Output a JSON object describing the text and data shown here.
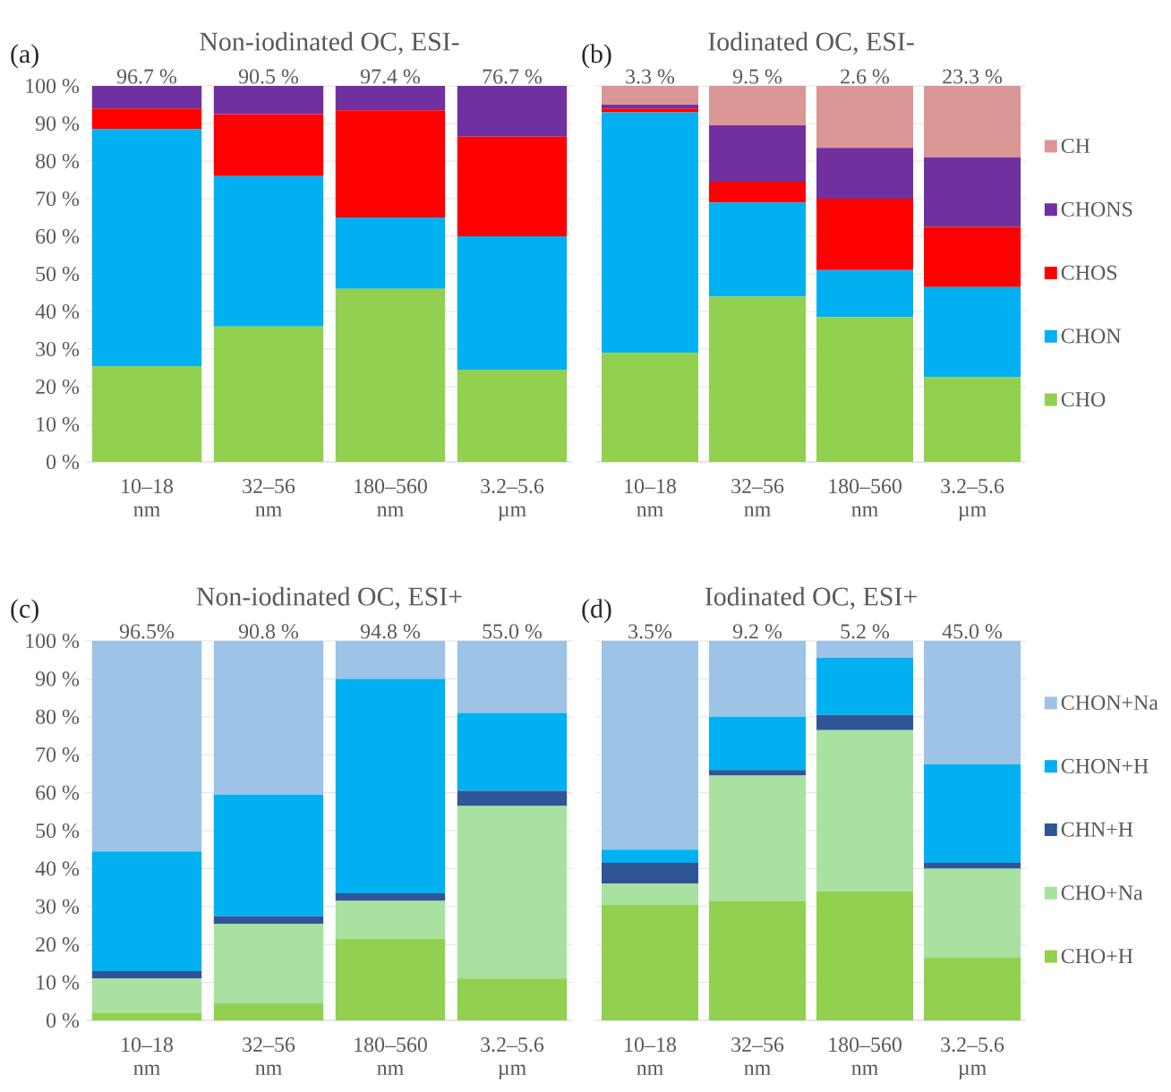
{
  "chart_data": [
    {
      "type": "bar",
      "stacked": true,
      "title": "Non-iodinated OC, ESI-",
      "categories": [
        "10–18 nm",
        "32–56 nm",
        "180–560 nm",
        "3.2–5.6 µm"
      ],
      "series": [
        {
          "color": "#92d050",
          "values": [
            25.5,
            36,
            46,
            24.5
          ]
        },
        {
          "color": "#00b0f0",
          "values": [
            63,
            40,
            19,
            35.5
          ]
        },
        {
          "color": "#ff0000",
          "values": [
            5.5,
            16.5,
            28.5,
            26.5
          ]
        },
        {
          "color": "#7030a0",
          "values": [
            6,
            7.5,
            6.5,
            13.5
          ]
        }
      ],
      "ylim": [
        0,
        100
      ],
      "yticks": [
        {
          "value": 0,
          "label": "0 %"
        },
        {
          "value": 10,
          "label": "10 %"
        },
        {
          "value": 20,
          "label": "20 %"
        },
        {
          "value": 30,
          "label": "30 %"
        },
        {
          "value": 40,
          "label": "40 %"
        },
        {
          "value": 50,
          "label": "50 %"
        },
        {
          "value": 60,
          "label": "60 %"
        },
        {
          "value": 70,
          "label": "70 %"
        },
        {
          "value": 80,
          "label": "80 %"
        },
        {
          "value": 90,
          "label": "90 %"
        },
        {
          "value": 100,
          "label": "100 %"
        }
      ],
      "grid": "y",
      "annotations": [
        "(a)",
        {
          "text": "96.7 %",
          "x": "10–18 nm",
          "y": 100
        },
        {
          "text": "90.5 %",
          "x": "32–56 nm",
          "y": 100
        },
        {
          "text": "97.4 %",
          "x": "180–560 nm",
          "y": 100
        },
        {
          "text": "76.7 %",
          "x": "3.2–5.6 µm",
          "y": 100
        }
      ]
    },
    {
      "type": "bar",
      "stacked": true,
      "title": "Iodinated OC, ESI-",
      "categories": [
        "10–18 nm",
        "32–56 nm",
        "180–560 nm",
        "3.2–5.6 µm"
      ],
      "series": [
        {
          "name": "CHO",
          "color": "#92d050",
          "values": [
            29,
            44,
            38.5,
            22.5
          ]
        },
        {
          "name": "CHON",
          "color": "#00b0f0",
          "values": [
            64,
            25,
            12.5,
            24
          ]
        },
        {
          "name": "CHOS",
          "color": "#ff0000",
          "values": [
            1,
            5.5,
            19,
            16
          ]
        },
        {
          "name": "CHONS",
          "color": "#7030a0",
          "values": [
            1,
            15,
            13.5,
            18.5
          ]
        },
        {
          "name": "CH",
          "color": "#da9694",
          "values": [
            5,
            10.5,
            16.5,
            19
          ]
        }
      ],
      "ylim": [
        0,
        100
      ],
      "yticks": [
        {
          "value": 0,
          "label": null
        },
        {
          "value": 10,
          "label": null
        },
        {
          "value": 20,
          "label": null
        },
        {
          "value": 30,
          "label": null
        },
        {
          "value": 40,
          "label": null
        },
        {
          "value": 50,
          "label": null
        },
        {
          "value": 60,
          "label": null
        },
        {
          "value": 70,
          "label": null
        },
        {
          "value": 80,
          "label": null
        },
        {
          "value": 90,
          "label": null
        },
        {
          "value": 100,
          "label": null
        }
      ],
      "tick_labels": "x",
      "grid": "y",
      "legend": "right",
      "annotations": [
        "(b)",
        {
          "text": "3.3 %",
          "x": "10–18 nm",
          "y": 100
        },
        {
          "text": "9.5 %",
          "x": "32–56 nm",
          "y": 100
        },
        {
          "text": "2.6 %",
          "x": "180–560 nm",
          "y": 100
        },
        {
          "text": "23.3 %",
          "x": "3.2–5.6 µm",
          "y": 100
        }
      ]
    },
    {
      "type": "bar",
      "stacked": true,
      "title": "Non-iodinated OC, ESI+",
      "categories": [
        "10–18 nm",
        "32–56 nm",
        "180–560 nm",
        "3.2–5.6 µm"
      ],
      "series": [
        {
          "color": "#92d050",
          "values": [
            2,
            4.5,
            21.5,
            11
          ]
        },
        {
          "color": "#a9e1a0",
          "values": [
            9,
            21,
            10,
            45.5
          ]
        },
        {
          "color": "#2f5597",
          "values": [
            2,
            2,
            2,
            4
          ]
        },
        {
          "color": "#00b0f0",
          "values": [
            31.5,
            32,
            56.5,
            20.5
          ]
        },
        {
          "color": "#9dc3e6",
          "values": [
            55.5,
            40.5,
            10,
            19
          ]
        }
      ],
      "ylim": [
        0,
        100
      ],
      "yticks": [
        {
          "value": 0,
          "label": "0 %"
        },
        {
          "value": 10,
          "label": "10 %"
        },
        {
          "value": 20,
          "label": "20 %"
        },
        {
          "value": 30,
          "label": "30 %"
        },
        {
          "value": 40,
          "label": "40 %"
        },
        {
          "value": 50,
          "label": "50 %"
        },
        {
          "value": 60,
          "label": "60 %"
        },
        {
          "value": 70,
          "label": "70 %"
        },
        {
          "value": 80,
          "label": "80 %"
        },
        {
          "value": 90,
          "label": "90 %"
        },
        {
          "value": 100,
          "label": "100 %"
        }
      ],
      "grid": "y",
      "annotations": [
        "(c)",
        {
          "text": "96.5%",
          "x": "10–18 nm",
          "y": 100
        },
        {
          "text": "90.8 %",
          "x": "32–56 nm",
          "y": 100
        },
        {
          "text": "94.8 %",
          "x": "180–560 nm",
          "y": 100
        },
        {
          "text": "55.0 %",
          "x": "3.2–5.6 µm",
          "y": 100
        }
      ]
    },
    {
      "type": "bar",
      "stacked": true,
      "title": "Iodinated OC, ESI+",
      "categories": [
        "10–18 nm",
        "32–56 nm",
        "180–560 nm",
        "3.2–5.6 µm"
      ],
      "series": [
        {
          "name": "CHO+H",
          "color": "#92d050",
          "values": [
            30.5,
            31.5,
            34,
            16.5
          ]
        },
        {
          "name": "CHO+Na",
          "color": "#a9e1a0",
          "values": [
            5.5,
            33,
            42.5,
            23.5
          ]
        },
        {
          "name": "CHN+H",
          "color": "#2f5597",
          "values": [
            5.5,
            1.5,
            4,
            1.5
          ]
        },
        {
          "name": "CHON+H",
          "color": "#00b0f0",
          "values": [
            3.5,
            14,
            15,
            26
          ]
        },
        {
          "name": "CHON+Na",
          "color": "#9dc3e6",
          "values": [
            55,
            20,
            4.5,
            32.5
          ]
        }
      ],
      "ylim": [
        0,
        100
      ],
      "yticks": [
        {
          "value": 0,
          "label": null
        },
        {
          "value": 10,
          "label": null
        },
        {
          "value": 20,
          "label": null
        },
        {
          "value": 30,
          "label": null
        },
        {
          "value": 40,
          "label": null
        },
        {
          "value": 50,
          "label": null
        },
        {
          "value": 60,
          "label": null
        },
        {
          "value": 70,
          "label": null
        },
        {
          "value": 80,
          "label": null
        },
        {
          "value": 90,
          "label": null
        },
        {
          "value": 100,
          "label": null
        }
      ],
      "tick_labels": "x",
      "grid": "y",
      "legend": "right",
      "annotations": [
        "(d)",
        {
          "text": "3.5%",
          "x": "10–18 nm",
          "y": 100
        },
        {
          "text": "9.2 %",
          "x": "32–56 nm",
          "y": 100
        },
        {
          "text": "5.2 %",
          "x": "180–560 nm",
          "y": 100
        },
        {
          "text": "45.0 %",
          "x": "3.2–5.6 µm",
          "y": 100
        }
      ]
    }
  ]
}
